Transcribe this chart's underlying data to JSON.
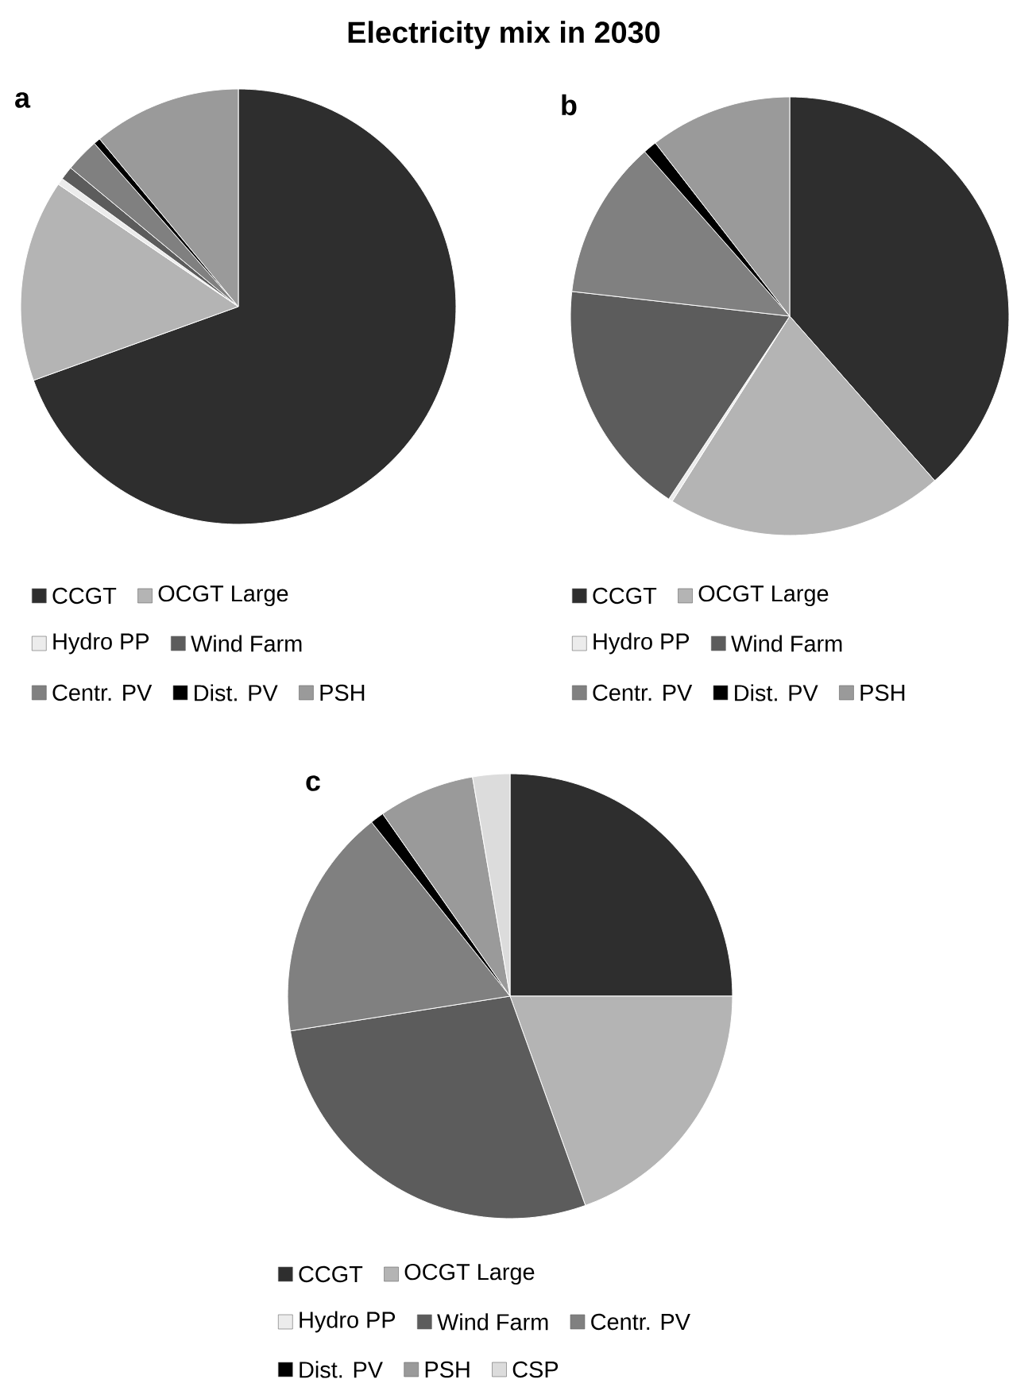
{
  "chart_data": [
    {
      "type": "pie",
      "title": "Electricity mix in 2030",
      "subtitle": "a",
      "categories": [
        "CCGT",
        "OCGT Large",
        "Hydro PP",
        "Wind Farm",
        "Centr. PV",
        "Dist. PV",
        "PSH"
      ],
      "values": [
        69.5,
        15,
        0.5,
        1,
        2.5,
        0.5,
        11
      ],
      "colors": [
        "#2e2e2e",
        "#b4b4b4",
        "#ececec",
        "#5c5c5c",
        "#808080",
        "#000000",
        "#9a9a9a"
      ],
      "legend": "bottom"
    },
    {
      "type": "pie",
      "title": "b",
      "categories": [
        "CCGT",
        "OCGT Large",
        "Hydro PP",
        "Wind Farm",
        "Centr. PV",
        "Dist. PV",
        "PSH"
      ],
      "values": [
        38.5,
        20.5,
        0.3,
        17.5,
        11.7,
        1,
        10.5
      ],
      "colors": [
        "#2e2e2e",
        "#b4b4b4",
        "#ececec",
        "#5c5c5c",
        "#808080",
        "#000000",
        "#9a9a9a"
      ],
      "legend": "bottom"
    },
    {
      "type": "pie",
      "title": "c",
      "categories": [
        "CCGT",
        "OCGT Large",
        "Hydro PP",
        "Wind Farm",
        "Centr. PV",
        "Dist. PV",
        "PSH",
        "CSP"
      ],
      "values": [
        25,
        19.5,
        0,
        28,
        16.8,
        1,
        7,
        2.7
      ],
      "colors": [
        "#2e2e2e",
        "#b4b4b4",
        "#ececec",
        "#5c5c5c",
        "#808080",
        "#000000",
        "#9a9a9a",
        "#dcdcdc"
      ],
      "legend": "bottom"
    }
  ]
}
